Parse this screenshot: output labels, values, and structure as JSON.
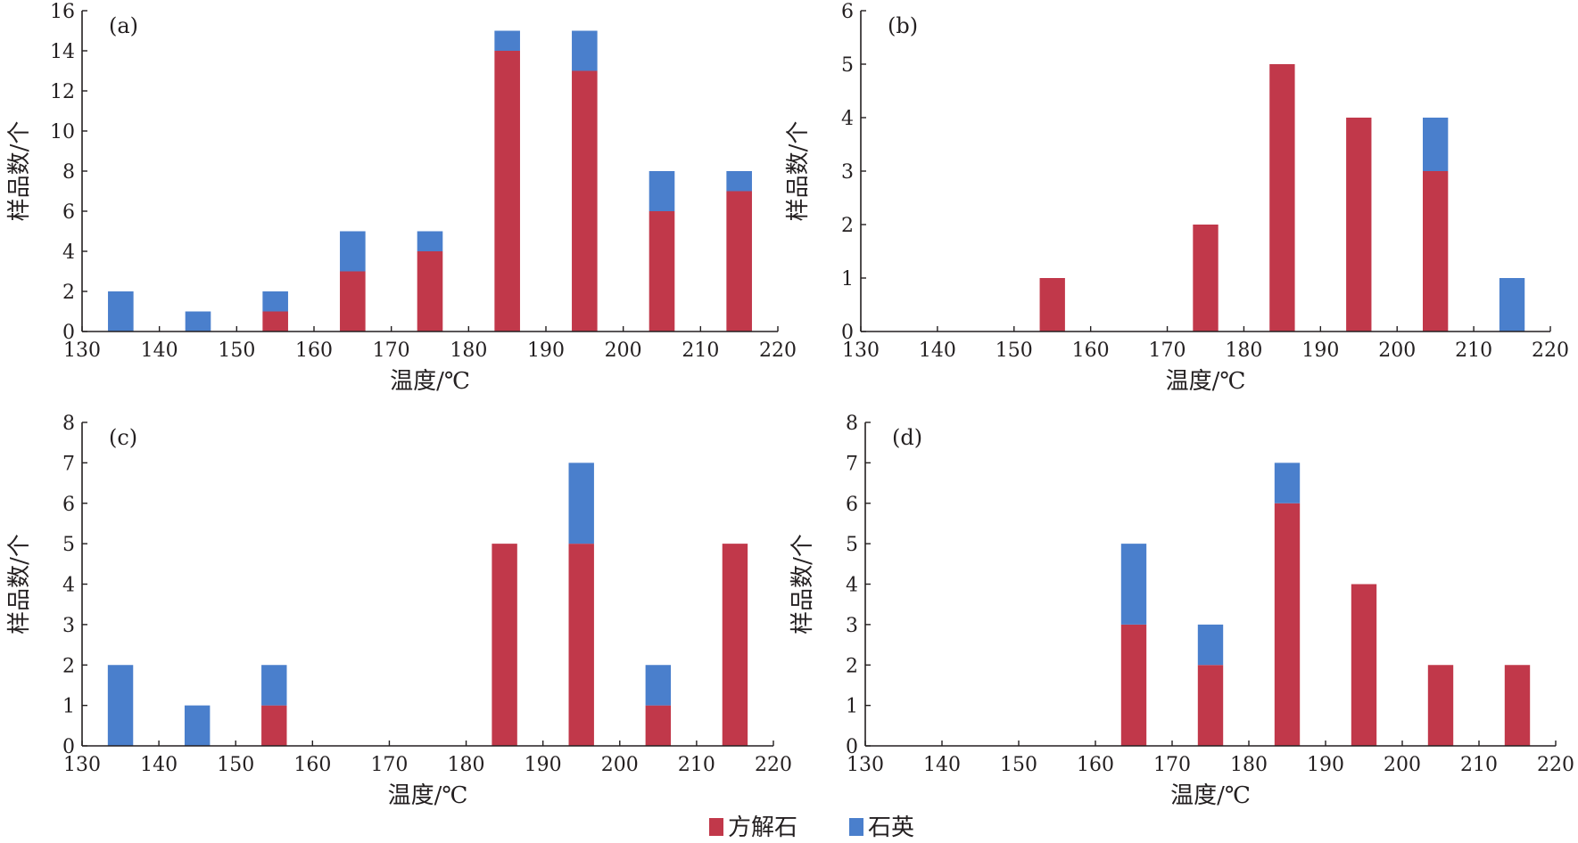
{
  "figure": {
    "legend": [
      {
        "label": "方解石",
        "color": "#c1384a"
      },
      {
        "label": "石英",
        "color": "#4a7fcc"
      }
    ]
  },
  "chart_data": [
    {
      "type": "bar",
      "stacked": true,
      "panel_label": "(a)",
      "xlabel": "温度/℃",
      "ylabel": "样品数/个",
      "xlim": [
        130,
        220
      ],
      "xticks": [
        130,
        140,
        150,
        160,
        170,
        180,
        190,
        200,
        210,
        220
      ],
      "ylim": [
        0,
        16
      ],
      "yticks": [
        0,
        2,
        4,
        6,
        8,
        10,
        12,
        14,
        16
      ],
      "bin_centers": [
        135,
        145,
        155,
        165,
        175,
        185,
        195,
        205,
        215
      ],
      "series": [
        {
          "name": "方解石",
          "color": "#c1384a",
          "values": [
            0,
            0,
            1,
            3,
            4,
            14,
            13,
            6,
            7
          ]
        },
        {
          "name": "石英",
          "color": "#4a7fcc",
          "values": [
            2,
            1,
            1,
            2,
            1,
            1,
            2,
            2,
            1
          ]
        }
      ]
    },
    {
      "type": "bar",
      "stacked": true,
      "panel_label": "(b)",
      "xlabel": "温度/℃",
      "ylabel": "样品数/个",
      "xlim": [
        130,
        220
      ],
      "xticks": [
        130,
        140,
        150,
        160,
        170,
        180,
        190,
        200,
        210,
        220
      ],
      "ylim": [
        0,
        6
      ],
      "yticks": [
        0,
        1,
        2,
        3,
        4,
        5,
        6
      ],
      "bin_centers": [
        135,
        145,
        155,
        165,
        175,
        185,
        195,
        205,
        215
      ],
      "series": [
        {
          "name": "方解石",
          "color": "#c1384a",
          "values": [
            0,
            0,
            1,
            0,
            2,
            5,
            4,
            3,
            0
          ]
        },
        {
          "name": "石英",
          "color": "#4a7fcc",
          "values": [
            0,
            0,
            0,
            0,
            0,
            0,
            0,
            1,
            1
          ]
        }
      ]
    },
    {
      "type": "bar",
      "stacked": true,
      "panel_label": "(c)",
      "xlabel": "温度/℃",
      "ylabel": "样品数/个",
      "xlim": [
        130,
        220
      ],
      "xticks": [
        130,
        140,
        150,
        160,
        170,
        180,
        190,
        200,
        210,
        220
      ],
      "ylim": [
        0,
        8
      ],
      "yticks": [
        0,
        1,
        2,
        3,
        4,
        5,
        6,
        7,
        8
      ],
      "bin_centers": [
        135,
        145,
        155,
        165,
        175,
        185,
        195,
        205,
        215
      ],
      "series": [
        {
          "name": "方解石",
          "color": "#c1384a",
          "values": [
            0,
            0,
            1,
            0,
            0,
            5,
            5,
            1,
            5
          ]
        },
        {
          "name": "石英",
          "color": "#4a7fcc",
          "values": [
            2,
            1,
            1,
            0,
            0,
            0,
            2,
            1,
            0
          ]
        }
      ]
    },
    {
      "type": "bar",
      "stacked": true,
      "panel_label": "(d)",
      "xlabel": "温度/℃",
      "ylabel": "样品数/个",
      "xlim": [
        130,
        220
      ],
      "xticks": [
        130,
        140,
        150,
        160,
        170,
        180,
        190,
        200,
        210,
        220
      ],
      "ylim": [
        0,
        8
      ],
      "yticks": [
        0,
        1,
        2,
        3,
        4,
        5,
        6,
        7,
        8
      ],
      "bin_centers": [
        135,
        145,
        155,
        165,
        175,
        185,
        195,
        205,
        215
      ],
      "series": [
        {
          "name": "方解石",
          "color": "#c1384a",
          "values": [
            0,
            0,
            0,
            3,
            2,
            6,
            4,
            2,
            2
          ]
        },
        {
          "name": "石英",
          "color": "#4a7fcc",
          "values": [
            0,
            0,
            0,
            2,
            1,
            1,
            0,
            0,
            0
          ]
        }
      ]
    }
  ]
}
